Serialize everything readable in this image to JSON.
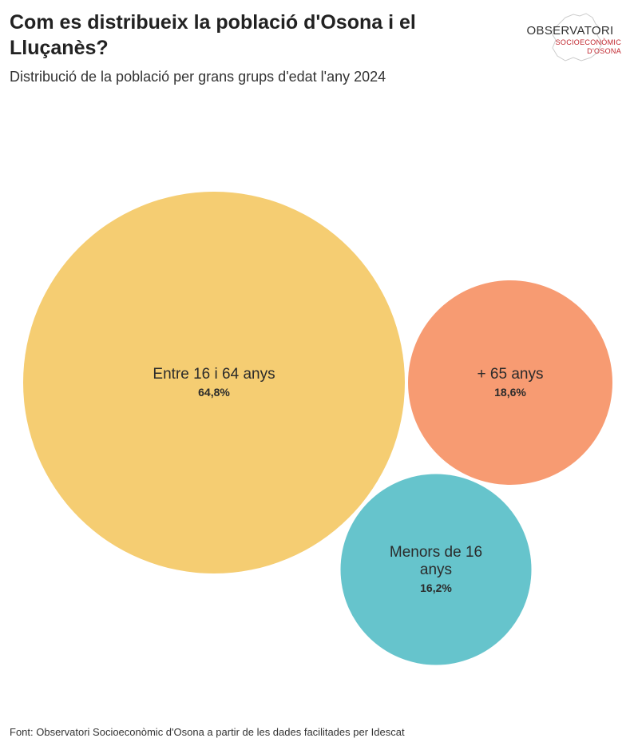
{
  "header": {
    "title": "Com es distribueix la població d'Osona i el Lluçanès?",
    "subtitle": "Distribució de la població per grans grups d'edat l'any 2024"
  },
  "logo": {
    "main": "OBSERVATORI",
    "line1": "SOCIOECONÒMIC",
    "line2": "D'OSONA"
  },
  "chart_data": {
    "type": "bubble",
    "title": "Com es distribueix la població d'Osona i el Lluçanès?",
    "subtitle": "Distribució de la població per grans grups d'edat l'any 2024",
    "unit": "%",
    "items": [
      {
        "label": "Entre 16 i 64 anys",
        "value": 64.8,
        "value_label": "64,8%",
        "color": "#f5cd72"
      },
      {
        "label": "+ 65 anys",
        "value": 18.6,
        "value_label": "18,6%",
        "color": "#f79b72"
      },
      {
        "label": "Menors de 16 anys",
        "value": 16.2,
        "value_label": "16,2%",
        "color": "#66c4cc"
      }
    ]
  },
  "footer": {
    "source": "Font: Observatori Socioeconòmic d'Osona a partir de les dades facilitades per Idescat"
  }
}
